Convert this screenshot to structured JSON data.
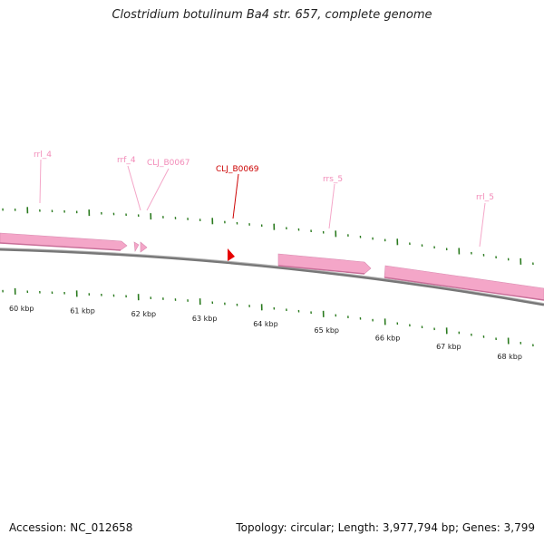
{
  "title": "Clostridium botulinum Ba4 str. 657, complete genome",
  "footer": {
    "accession": "Accession: NC_012658",
    "summary": "Topology: circular; Length: 3,977,794 bp; Genes: 3,799"
  },
  "colors": {
    "feature_rna": "#f4a6c8",
    "feature_rna_edge": "#c76d97",
    "highlight_gene": "#e60000",
    "backbone": "#777777",
    "ticks": "#2a7a1e",
    "label_rna": "#f28bb8",
    "label_highlight": "#cc0000"
  },
  "features": [
    {
      "name": "rrl_4",
      "type": "rRNA"
    },
    {
      "name": "rrf_4",
      "type": "rRNA"
    },
    {
      "name": "CLJ_B0067",
      "type": "tRNA"
    },
    {
      "name": "CLJ_B0069",
      "type": "gene",
      "highlighted": true
    },
    {
      "name": "rrs_5",
      "type": "rRNA"
    },
    {
      "name": "rrl_5",
      "type": "rRNA"
    }
  ],
  "scale": {
    "unit": "kbp",
    "labels": [
      "60 kbp",
      "61 kbp",
      "62 kbp",
      "63 kbp",
      "64 kbp",
      "65 kbp",
      "66 kbp",
      "67 kbp",
      "68 kbp"
    ]
  }
}
